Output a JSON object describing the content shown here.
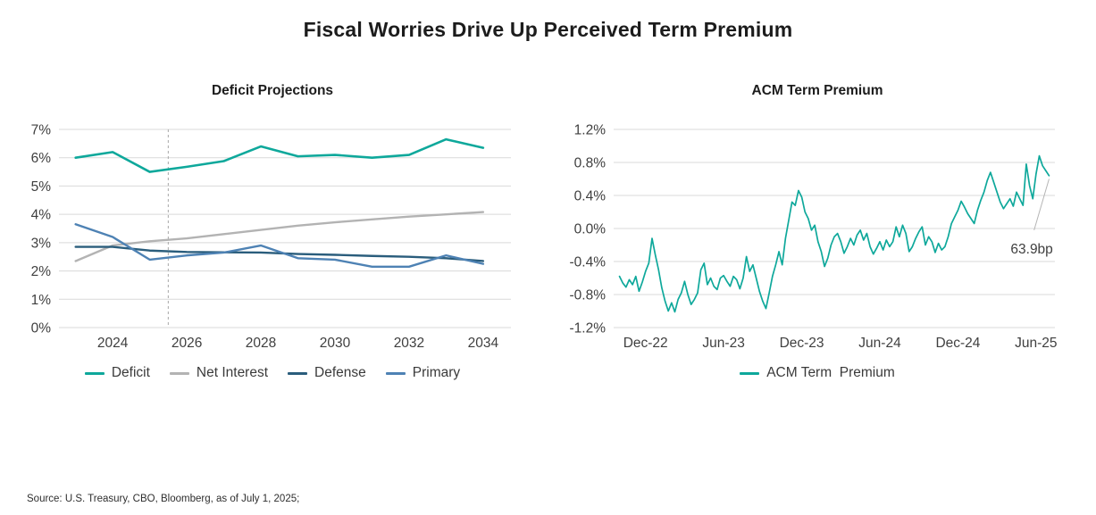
{
  "title": "Fiscal Worries Drive Up Perceived Term Premium",
  "source": "Source: U.S. Treasury, CBO, Bloomberg, as of July 1, 2025;",
  "colors": {
    "deficit_teal": "#0ea89b",
    "net_interest_gray": "#b3b3b3",
    "defense_navy": "#2a5d7c",
    "primary_blue": "#4e82b4",
    "gridline": "#d9d9d9",
    "annotation_line": "#b5b5b5"
  },
  "chart_data": [
    {
      "type": "line",
      "title": "Deficit Projections",
      "xlabel": "",
      "ylabel": "",
      "grid": true,
      "legend_position": "bottom",
      "x": [
        2023,
        2024,
        2025,
        2026,
        2027,
        2028,
        2029,
        2030,
        2031,
        2032,
        2033,
        2034
      ],
      "xlim": [
        2022.55,
        2034.75
      ],
      "ylim": [
        0,
        7
      ],
      "vline": 2025.5,
      "yticks": [
        {
          "v": 7,
          "label": "7%"
        },
        {
          "v": 6,
          "label": "6%"
        },
        {
          "v": 5,
          "label": "5%"
        },
        {
          "v": 4,
          "label": "4%"
        },
        {
          "v": 3,
          "label": "3%"
        },
        {
          "v": 2,
          "label": "2%"
        },
        {
          "v": 1,
          "label": "1%"
        },
        {
          "v": 0,
          "label": "0%"
        }
      ],
      "xticks": [
        {
          "v": 2024,
          "label": "2024"
        },
        {
          "v": 2026,
          "label": "2026"
        },
        {
          "v": 2028,
          "label": "2028"
        },
        {
          "v": 2030,
          "label": "2030"
        },
        {
          "v": 2032,
          "label": "2032"
        },
        {
          "v": 2034,
          "label": "2034"
        }
      ],
      "series": [
        {
          "name": "Deficit",
          "color": "#0ea89b",
          "width": 2.6,
          "values": [
            6.0,
            6.2,
            5.5,
            5.68,
            5.88,
            6.4,
            6.05,
            6.1,
            6.0,
            6.1,
            6.65,
            6.35
          ]
        },
        {
          "name": "Net Interest",
          "color": "#b3b3b3",
          "width": 2.4,
          "values": [
            2.35,
            2.9,
            3.05,
            3.15,
            3.3,
            3.45,
            3.6,
            3.72,
            3.82,
            3.92,
            4.0,
            4.08
          ]
        },
        {
          "name": "Defense",
          "color": "#2a5d7c",
          "width": 2.4,
          "values": [
            2.85,
            2.85,
            2.72,
            2.67,
            2.66,
            2.65,
            2.6,
            2.57,
            2.53,
            2.5,
            2.45,
            2.35
          ]
        },
        {
          "name": "Primary",
          "color": "#4e82b4",
          "width": 2.4,
          "values": [
            3.65,
            3.2,
            2.4,
            2.55,
            2.65,
            2.9,
            2.45,
            2.4,
            2.15,
            2.15,
            2.55,
            2.25
          ]
        }
      ]
    },
    {
      "type": "line",
      "title": "ACM Term Premium",
      "xlabel": "",
      "ylabel": "",
      "grid": true,
      "legend_position": "bottom",
      "x_unit": "months since Oct-2022",
      "xstart": 0,
      "xstep": 0.25,
      "xlim": [
        -0.45,
        33.45
      ],
      "ylim": [
        -1.2,
        1.2
      ],
      "yticks": [
        {
          "v": 1.2,
          "label": "1.2%"
        },
        {
          "v": 0.8,
          "label": "0.8%"
        },
        {
          "v": 0.4,
          "label": "0.4%"
        },
        {
          "v": 0.0,
          "label": "0.0%"
        },
        {
          "v": -0.4,
          "label": "-0.4%"
        },
        {
          "v": -0.8,
          "label": "-0.8%"
        },
        {
          "v": -1.2,
          "label": "-1.2%"
        }
      ],
      "xticks": [
        {
          "v": 2,
          "label": "Dec-22"
        },
        {
          "v": 8,
          "label": "Jun-23"
        },
        {
          "v": 14,
          "label": "Dec-23"
        },
        {
          "v": 20,
          "label": "Jun-24"
        },
        {
          "v": 26,
          "label": "Dec-24"
        },
        {
          "v": 32,
          "label": "Jun-25"
        }
      ],
      "annotation": {
        "text": "63.9bp",
        "line_from": [
          33.0,
          0.6
        ],
        "line_to": [
          31.85,
          -0.02
        ],
        "text_at": [
          33.3,
          -0.3
        ]
      },
      "series": [
        {
          "name": "ACM Term  Premium",
          "color": "#0ea89b",
          "width": 1.7,
          "values": [
            -0.58,
            -0.66,
            -0.71,
            -0.62,
            -0.68,
            -0.58,
            -0.76,
            -0.65,
            -0.52,
            -0.42,
            -0.12,
            -0.32,
            -0.5,
            -0.72,
            -0.88,
            -1.0,
            -0.9,
            -1.01,
            -0.86,
            -0.78,
            -0.64,
            -0.8,
            -0.92,
            -0.86,
            -0.78,
            -0.5,
            -0.42,
            -0.68,
            -0.6,
            -0.7,
            -0.74,
            -0.6,
            -0.57,
            -0.64,
            -0.7,
            -0.58,
            -0.62,
            -0.73,
            -0.6,
            -0.34,
            -0.52,
            -0.44,
            -0.6,
            -0.76,
            -0.88,
            -0.97,
            -0.78,
            -0.58,
            -0.44,
            -0.28,
            -0.44,
            -0.12,
            0.1,
            0.32,
            0.28,
            0.46,
            0.38,
            0.2,
            0.12,
            -0.02,
            0.04,
            -0.16,
            -0.28,
            -0.46,
            -0.36,
            -0.2,
            -0.1,
            -0.06,
            -0.16,
            -0.3,
            -0.22,
            -0.12,
            -0.2,
            -0.08,
            -0.02,
            -0.14,
            -0.06,
            -0.22,
            -0.31,
            -0.24,
            -0.16,
            -0.26,
            -0.14,
            -0.22,
            -0.16,
            0.02,
            -0.1,
            0.04,
            -0.06,
            -0.28,
            -0.22,
            -0.12,
            -0.04,
            0.02,
            -0.2,
            -0.1,
            -0.16,
            -0.29,
            -0.18,
            -0.26,
            -0.22,
            -0.1,
            0.06,
            0.14,
            0.22,
            0.33,
            0.26,
            0.18,
            0.12,
            0.06,
            0.22,
            0.34,
            0.44,
            0.58,
            0.68,
            0.56,
            0.44,
            0.32,
            0.24,
            0.3,
            0.36,
            0.27,
            0.44,
            0.36,
            0.28,
            0.78,
            0.52,
            0.36,
            0.66,
            0.88,
            0.76,
            0.7,
            0.64
          ]
        }
      ]
    }
  ]
}
